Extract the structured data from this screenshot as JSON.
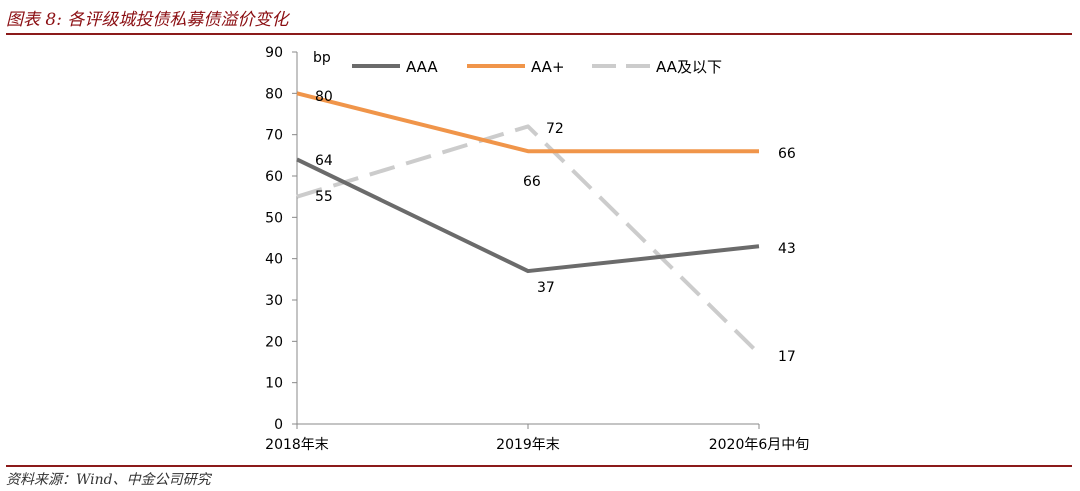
{
  "header": {
    "title": "图表 8: 各评级城投债私募债溢价变化"
  },
  "footer": {
    "source": "资料来源：Wind、中金公司研究"
  },
  "chart_data": {
    "type": "line",
    "title": "各评级城投债私募债溢价变化",
    "ylabel": "bp",
    "xlabel": "",
    "categories": [
      "2018年末",
      "2019年末",
      "2020年6月中旬"
    ],
    "ylim": [
      0,
      90
    ],
    "yticks": [
      0,
      10,
      20,
      30,
      40,
      50,
      60,
      70,
      80,
      90
    ],
    "legend_position": "top",
    "grid": false,
    "series": [
      {
        "name": "AAA",
        "values": [
          64,
          37,
          43
        ],
        "color": "#6b6b6b",
        "dash": "solid",
        "labels": [
          "64",
          "37",
          "43"
        ]
      },
      {
        "name": "AA+",
        "values": [
          80,
          66,
          66
        ],
        "color": "#f0954a",
        "dash": "solid",
        "labels": [
          "80",
          "66",
          "66"
        ]
      },
      {
        "name": "AA及以下",
        "values": [
          55,
          72,
          17
        ],
        "color": "#cccccc",
        "dash": "dashed",
        "labels": [
          "55",
          "72",
          "17"
        ]
      }
    ]
  }
}
